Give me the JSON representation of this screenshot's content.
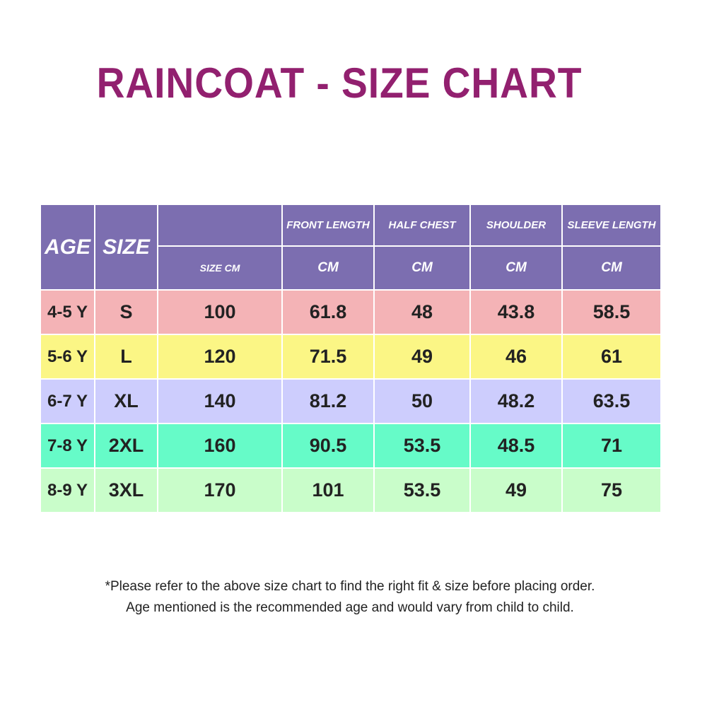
{
  "title": "RAINCOAT - SIZE CHART",
  "colors": {
    "title": "#92206f",
    "header_bg": "#7c6eb0",
    "row_colors": [
      "#f4b3b6",
      "#fbf685",
      "#cdcdfd",
      "#66fbc8",
      "#c9fdca"
    ]
  },
  "table": {
    "header": {
      "age": "AGE",
      "size": "SIZE",
      "size_cm": "SIZE CM",
      "columns": [
        {
          "label": "FRONT LENGTH",
          "unit": "CM"
        },
        {
          "label": "HALF CHEST",
          "unit": "CM"
        },
        {
          "label": "SHOULDER",
          "unit": "CM"
        },
        {
          "label": "SLEEVE LENGTH",
          "unit": "CM"
        }
      ]
    },
    "rows": [
      {
        "age": "4-5 Y",
        "size": "S",
        "size_cm": "100",
        "front_length": "61.8",
        "half_chest": "48",
        "shoulder": "43.8",
        "sleeve_length": "58.5"
      },
      {
        "age": "5-6 Y",
        "size": "L",
        "size_cm": "120",
        "front_length": "71.5",
        "half_chest": "49",
        "shoulder": "46",
        "sleeve_length": "61"
      },
      {
        "age": "6-7 Y",
        "size": "XL",
        "size_cm": "140",
        "front_length": "81.2",
        "half_chest": "50",
        "shoulder": "48.2",
        "sleeve_length": "63.5"
      },
      {
        "age": "7-8 Y",
        "size": "2XL",
        "size_cm": "160",
        "front_length": "90.5",
        "half_chest": "53.5",
        "shoulder": "48.5",
        "sleeve_length": "71"
      },
      {
        "age": "8-9 Y",
        "size": "3XL",
        "size_cm": "170",
        "front_length": "101",
        "half_chest": "53.5",
        "shoulder": "49",
        "sleeve_length": "75"
      }
    ]
  },
  "notes": {
    "line1": "*Please refer to the above size chart to find the right fit & size before placing order.",
    "line2": "Age mentioned is the recommended age and would vary from child to child."
  }
}
